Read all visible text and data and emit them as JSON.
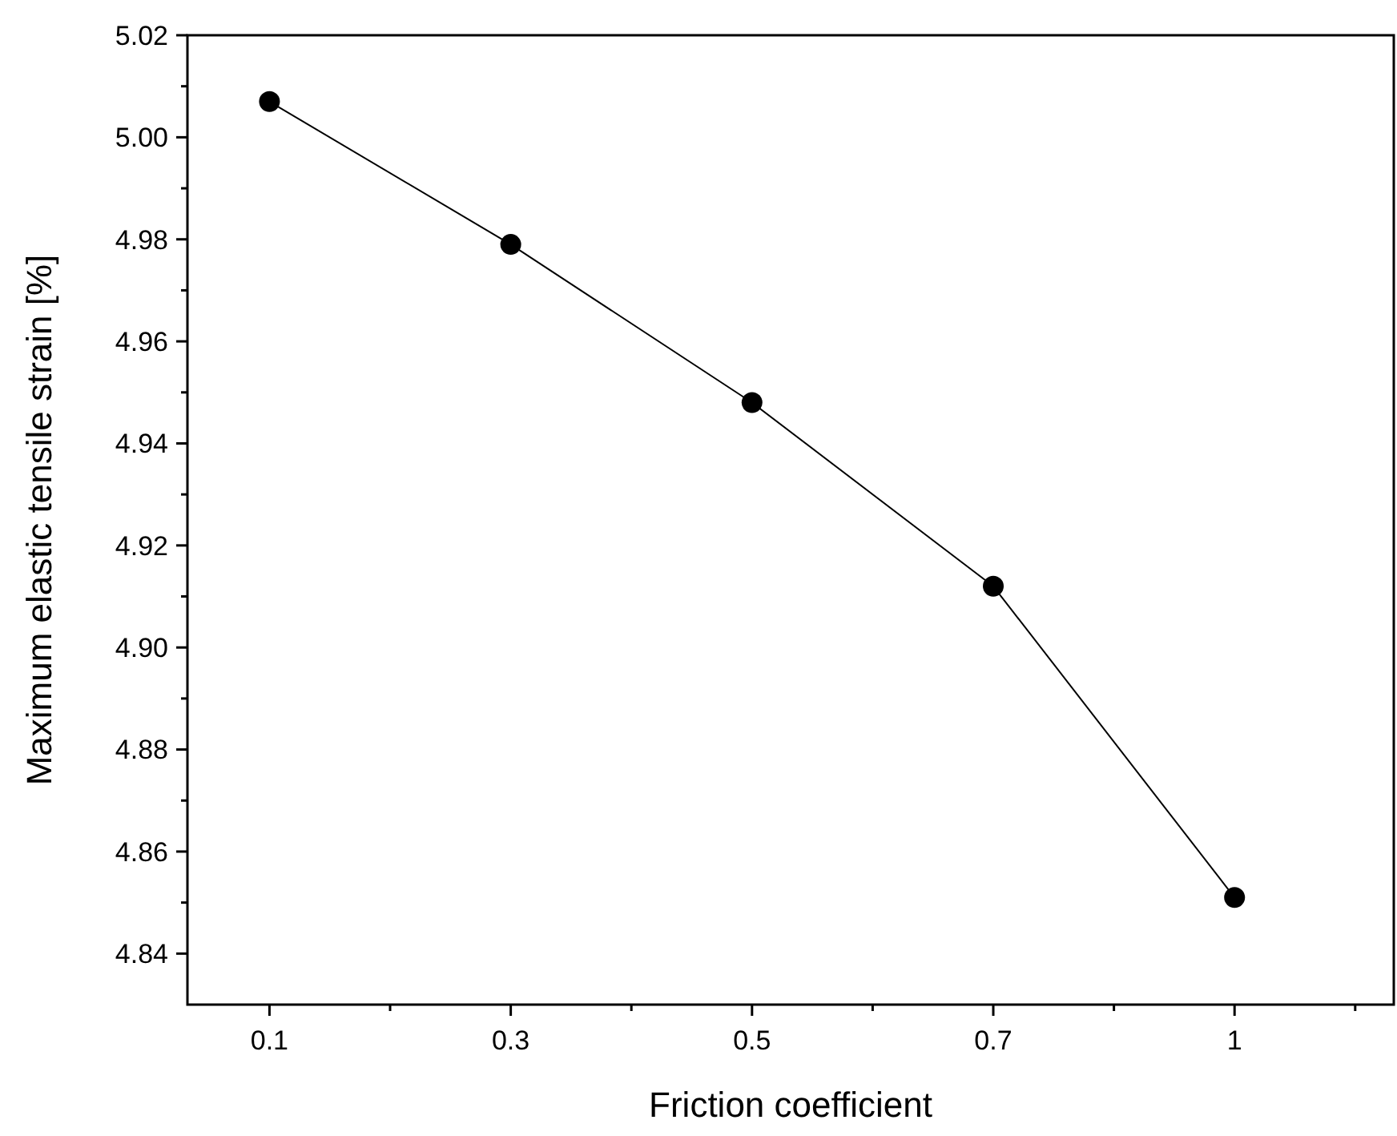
{
  "chart_data": {
    "type": "line",
    "xlabel": "Friction coefficient",
    "ylabel": "Maximum elastic tensile strain [%]",
    "categories": [
      "0.1",
      "0.3",
      "0.5",
      "0.7",
      "1"
    ],
    "series": [
      {
        "color": "#000000",
        "values": [
          5.007,
          4.979,
          4.948,
          4.912,
          4.851
        ]
      }
    ],
    "ylim": [
      4.83,
      5.02
    ],
    "yticks": [
      4.84,
      4.86,
      4.88,
      {
        "value": 4.9,
        "label": "4.90"
      },
      4.92,
      4.94,
      4.96,
      4.98,
      {
        "value": 5,
        "label": "5.00"
      },
      5.02
    ],
    "marker": "circle",
    "line_style": "solid",
    "grid": false
  }
}
